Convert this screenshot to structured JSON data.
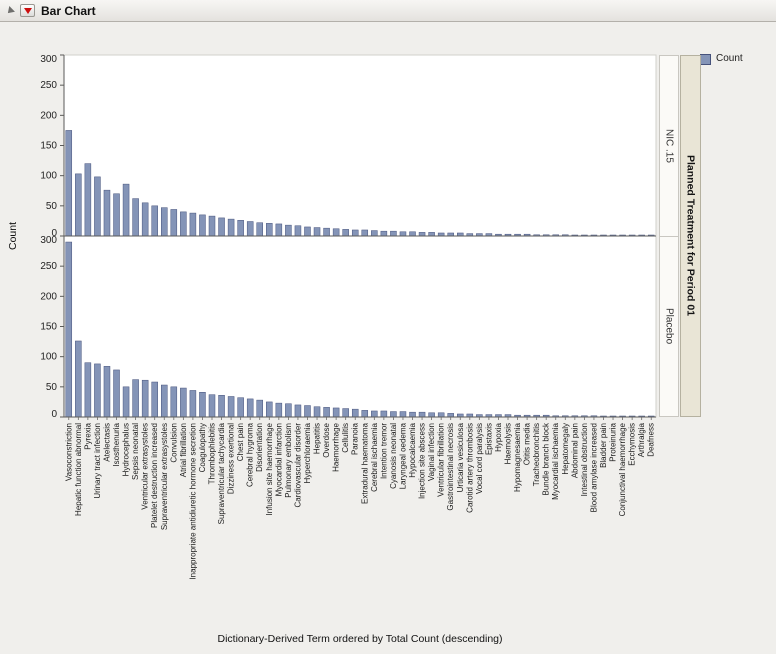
{
  "window": {
    "title": "Bar Chart"
  },
  "icons": {
    "disclosure": "gray-triangle-sw",
    "menu": "red-triangle-down"
  },
  "legend": {
    "label": "Count"
  },
  "panel_group": {
    "title": "Planned Treatment for Period 01"
  },
  "chart_data": {
    "type": "bar",
    "title": "Bar Chart",
    "xlabel": "Dictionary-Derived Term ordered by Total Count (descending)",
    "ylabel": "Count",
    "ylim": [
      0,
      300
    ],
    "yticks": [
      0,
      50,
      100,
      150,
      200,
      250,
      300
    ],
    "grid": false,
    "legend_position": "top-right",
    "panel_variable": "Planned Treatment for Period 01",
    "bar_color": "#8494b7",
    "bar_edge_color": "#46527b",
    "categories": [
      "Vasoconstriction",
      "Hepatic function abnormal",
      "Pyrexia",
      "Urinary tract infection",
      "Atelectasis",
      "Isosthenuria",
      "Hydrocephalus",
      "Sepsis neonatal",
      "Ventricular extrasystoles",
      "Platelet destruction increased",
      "Supraventricular extrasystoles",
      "Convulsion",
      "Atrial fibrillation",
      "Inappropriate antidiuretic hormone secretion",
      "Coagulopathy",
      "Thrombophlebitis",
      "Supraventricular tachycardia",
      "Dizziness exertional",
      "Chest pain",
      "Cerebral hygroma",
      "Disorientation",
      "Infusion site haemorrhage",
      "Myocardial infarction",
      "Pulmonary embolism",
      "Cardiovascular disorder",
      "Hyperchloraemia",
      "Hepatitis",
      "Overdose",
      "Haemorrhage",
      "Cellulitis",
      "Paranoia",
      "Extradural haematoma",
      "Cerebral ischaemia",
      "Intention tremor",
      "Cyanosis neonatal",
      "Laryngeal oedema",
      "Hypocalcaemia",
      "Injection site abscess",
      "Vaginal infection",
      "Ventricular fibrillation",
      "Gastrointestinal necrosis",
      "Urticaria vesiculosa",
      "Carotid artery thrombosis",
      "Vocal cord paralysis",
      "Epistaxis",
      "Hypoxia",
      "Haemolysis",
      "Hypomagnesaemia",
      "Otitis media",
      "Tracheobronchitis",
      "Bundle branch block",
      "Myocardial ischaemia",
      "Hepatomegaly",
      "Abdominal pain",
      "Intestinal obstruction",
      "Blood amylase increased",
      "Bladder pain",
      "Proteinuria",
      "Conjunctival haemorrhage",
      "Ecchymosis",
      "Arthralgia",
      "Deafness"
    ],
    "series": [
      {
        "name": "NIC .15",
        "values": [
          175,
          103,
          120,
          98,
          76,
          70,
          86,
          62,
          55,
          50,
          47,
          44,
          40,
          38,
          35,
          33,
          30,
          28,
          26,
          24,
          22,
          21,
          20,
          18,
          17,
          15,
          14,
          13,
          12,
          11,
          10,
          10,
          9,
          8,
          8,
          7,
          7,
          6,
          6,
          5,
          5,
          5,
          4,
          4,
          4,
          3,
          3,
          3,
          3,
          2,
          2,
          2,
          2,
          1,
          1,
          1,
          1,
          1,
          1,
          1,
          1,
          1
        ]
      },
      {
        "name": "Placebo",
        "values": [
          290,
          126,
          90,
          88,
          84,
          78,
          50,
          62,
          61,
          58,
          53,
          50,
          48,
          44,
          41,
          37,
          36,
          34,
          32,
          30,
          28,
          25,
          23,
          22,
          20,
          19,
          17,
          16,
          15,
          14,
          13,
          11,
          10,
          10,
          9,
          9,
          8,
          8,
          7,
          7,
          6,
          5,
          5,
          4,
          4,
          4,
          4,
          3,
          3,
          3,
          3,
          2,
          2,
          2,
          2,
          2,
          1,
          1,
          1,
          1,
          1,
          1
        ]
      }
    ]
  }
}
